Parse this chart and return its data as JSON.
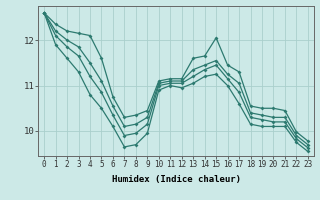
{
  "background_color": "#cce9e7",
  "grid_color": "#aacfcc",
  "line_color": "#2d7a70",
  "xlabel": "Humidex (Indice chaleur)",
  "xlim": [
    -0.5,
    23.5
  ],
  "ylim": [
    9.45,
    12.75
  ],
  "yticks": [
    10,
    11,
    12
  ],
  "xticks": [
    0,
    1,
    2,
    3,
    4,
    5,
    6,
    7,
    8,
    9,
    10,
    11,
    12,
    13,
    14,
    15,
    16,
    17,
    18,
    19,
    20,
    21,
    22,
    23
  ],
  "series": [
    [
      12.6,
      12.35,
      12.2,
      12.15,
      12.1,
      11.6,
      10.75,
      10.3,
      10.35,
      10.45,
      11.1,
      11.15,
      11.15,
      11.6,
      11.65,
      12.05,
      11.45,
      11.3,
      10.55,
      10.5,
      10.5,
      10.45,
      9.98,
      9.78
    ],
    [
      12.6,
      12.2,
      12.0,
      11.85,
      11.5,
      11.1,
      10.55,
      10.1,
      10.15,
      10.3,
      11.05,
      11.1,
      11.1,
      11.35,
      11.45,
      11.55,
      11.25,
      11.05,
      10.4,
      10.35,
      10.3,
      10.3,
      9.9,
      9.7
    ],
    [
      12.6,
      12.1,
      11.85,
      11.65,
      11.2,
      10.85,
      10.35,
      9.9,
      9.95,
      10.15,
      11.0,
      11.05,
      11.05,
      11.2,
      11.35,
      11.45,
      11.15,
      10.85,
      10.3,
      10.25,
      10.2,
      10.2,
      9.83,
      9.63
    ],
    [
      12.6,
      11.9,
      11.6,
      11.3,
      10.8,
      10.5,
      10.1,
      9.65,
      9.7,
      9.95,
      10.9,
      11.0,
      10.95,
      11.05,
      11.2,
      11.25,
      11.0,
      10.6,
      10.15,
      10.1,
      10.1,
      10.1,
      9.75,
      9.55
    ]
  ]
}
